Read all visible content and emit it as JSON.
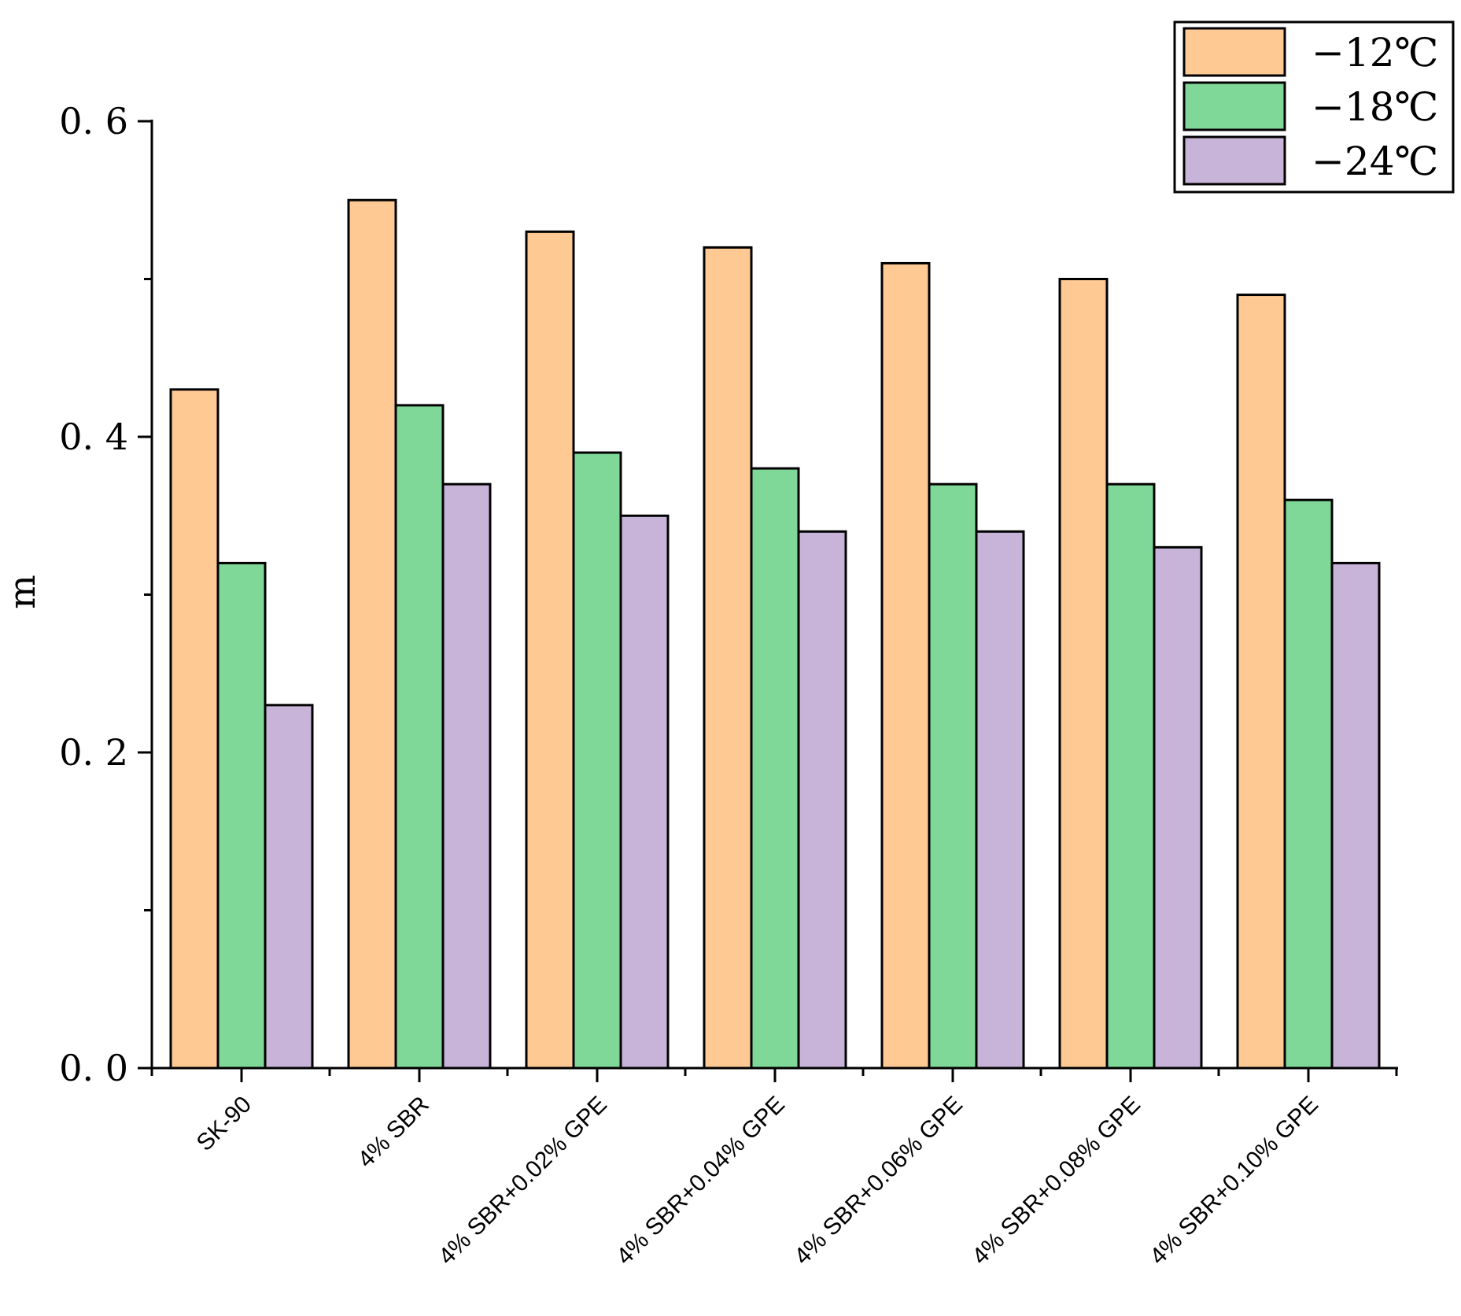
{
  "chart_data": {
    "type": "bar",
    "title": "",
    "xlabel": "",
    "ylabel": "m",
    "ylim": [
      0,
      0.6
    ],
    "yticks": [
      0.0,
      0.2,
      0.4,
      0.6
    ],
    "ytick_labels": [
      "0. 0",
      "0. 2",
      "0. 4",
      "0. 6"
    ],
    "grid": false,
    "legend_position": "top-right",
    "categories": [
      "SK-90",
      "4% SBR",
      "4% SBR+0.02% GPE",
      "4% SBR+0.04% GPE",
      "4% SBR+0.06% GPE",
      "4% SBR+0.08% GPE",
      "4% SBR+0.10% GPE"
    ],
    "series": [
      {
        "name": "−12℃",
        "color": "#FFC994",
        "values": [
          0.43,
          0.55,
          0.53,
          0.52,
          0.51,
          0.5,
          0.49
        ]
      },
      {
        "name": "−18℃",
        "color": "#80D898",
        "values": [
          0.32,
          0.42,
          0.39,
          0.38,
          0.37,
          0.37,
          0.36
        ]
      },
      {
        "name": "−24℃",
        "color": "#C8B4D8",
        "values": [
          0.23,
          0.37,
          0.35,
          0.34,
          0.34,
          0.33,
          0.32
        ]
      }
    ]
  }
}
